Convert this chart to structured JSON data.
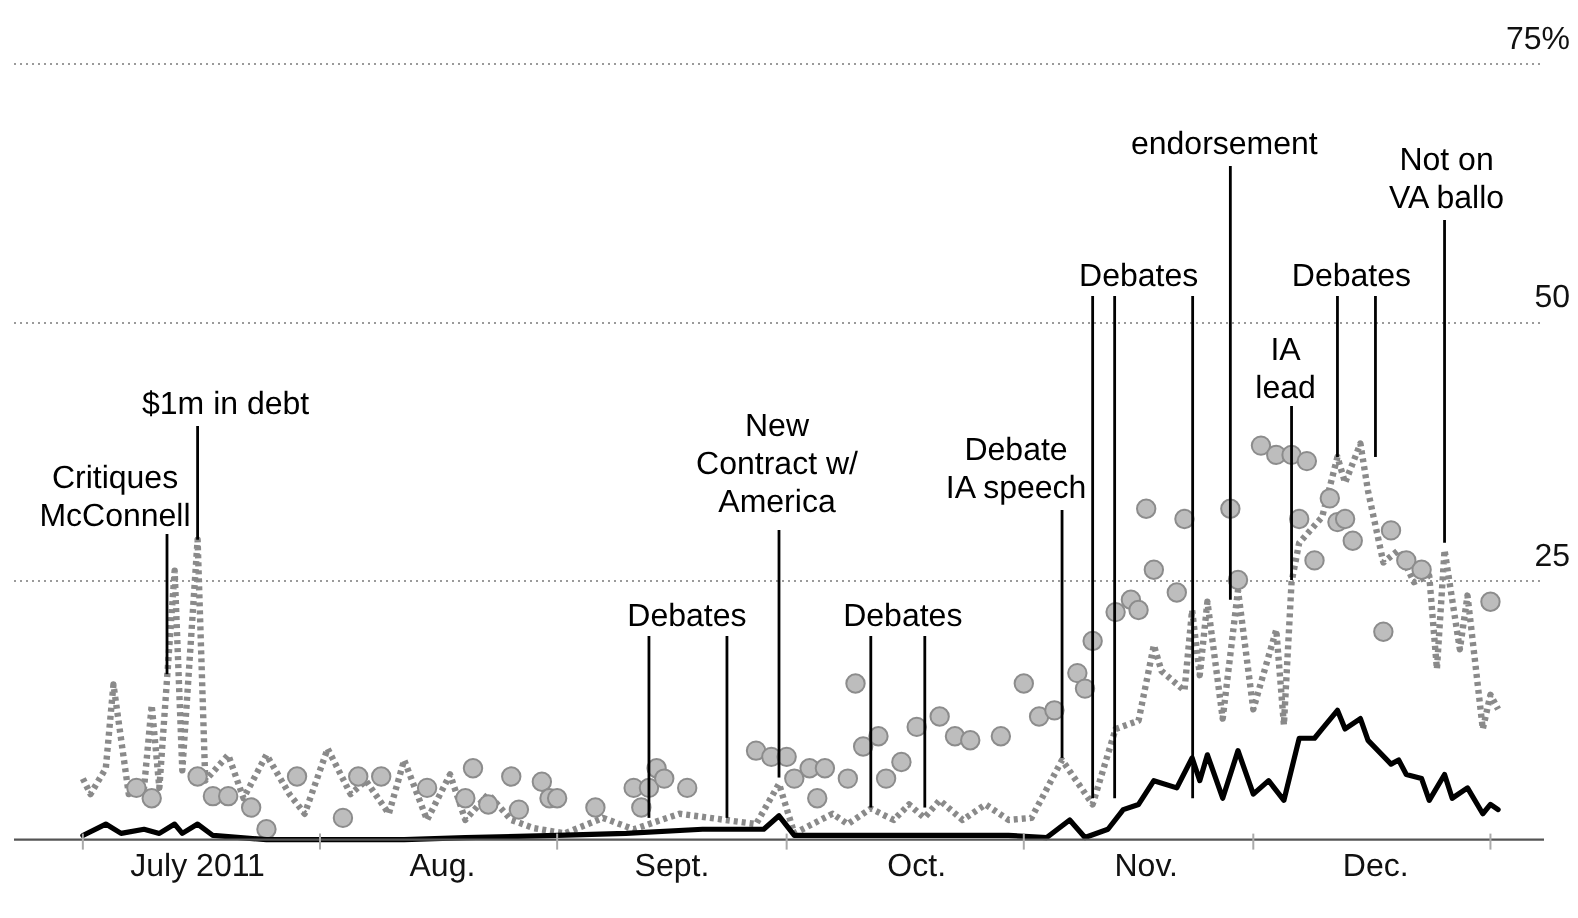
{
  "chart_data": {
    "type": "line",
    "xlim": [
      "2011-06-22",
      "2012-01-08"
    ],
    "ylim": [
      0,
      75
    ],
    "xticks": [
      {
        "value": "2011-07-01",
        "label": null
      },
      {
        "value": "2011-07-16",
        "label": "July 2011"
      },
      {
        "value": "2011-08-01",
        "label": null
      },
      {
        "value": "2011-08-17",
        "label": "Aug."
      },
      {
        "value": "2011-09-01",
        "label": null
      },
      {
        "value": "2011-09-16",
        "label": "Sept."
      },
      {
        "value": "2011-10-01",
        "label": null
      },
      {
        "value": "2011-10-18",
        "label": "Oct."
      },
      {
        "value": "2011-11-01",
        "label": null
      },
      {
        "value": "2011-11-17",
        "label": "Nov."
      },
      {
        "value": "2011-12-01",
        "label": null
      },
      {
        "value": "2011-12-17",
        "label": "Dec."
      },
      {
        "value": "2012-01-01",
        "label": null
      }
    ],
    "yticks": [
      25,
      50,
      {
        "value": 75,
        "label": "75%"
      }
    ],
    "grid": "y",
    "legend": false,
    "series": [
      {
        "color": "#8a8a8a",
        "line_style": "dotted",
        "x": [
          "2011-07-01",
          "2011-07-02",
          "2011-07-04",
          "2011-07-05",
          "2011-07-07",
          "2011-07-09",
          "2011-07-10",
          "2011-07-11",
          "2011-07-13",
          "2011-07-14",
          "2011-07-16",
          "2011-07-17",
          "2011-07-20",
          "2011-07-22",
          "2011-07-25",
          "2011-07-28",
          "2011-07-30",
          "2011-08-02",
          "2011-08-05",
          "2011-08-07",
          "2011-08-10",
          "2011-08-12",
          "2011-08-15",
          "2011-08-18",
          "2011-08-20",
          "2011-08-23",
          "2011-08-26",
          "2011-08-29",
          "2011-09-02",
          "2011-09-07",
          "2011-09-11",
          "2011-09-17",
          "2011-09-23",
          "2011-09-27",
          "2011-09-30",
          "2011-10-02",
          "2011-10-07",
          "2011-10-09",
          "2011-10-12",
          "2011-10-15",
          "2011-10-17",
          "2011-10-19",
          "2011-10-21",
          "2011-10-24",
          "2011-10-27",
          "2011-10-30",
          "2011-11-02",
          "2011-11-06",
          "2011-11-10",
          "2011-11-13",
          "2011-11-16",
          "2011-11-18",
          "2011-11-19",
          "2011-11-22",
          "2011-11-23",
          "2011-11-24",
          "2011-11-25",
          "2011-11-27",
          "2011-11-29",
          "2011-12-01",
          "2011-12-04",
          "2011-12-05",
          "2011-12-06",
          "2011-12-07",
          "2011-12-10",
          "2011-12-12",
          "2011-12-13",
          "2011-12-15",
          "2011-12-16",
          "2011-12-18",
          "2011-12-20",
          "2011-12-22",
          "2011-12-24",
          "2011-12-25",
          "2011-12-26",
          "2011-12-28",
          "2011-12-29",
          "2011-12-31",
          "2012-01-01",
          "2012-01-02"
        ],
        "values": [
          5.9,
          4.4,
          6.9,
          15,
          4.4,
          5,
          13,
          5,
          26,
          6.7,
          29,
          5.7,
          8.2,
          4,
          8.2,
          4.4,
          2.5,
          8.8,
          4.4,
          5.7,
          2.5,
          7.7,
          1.9,
          6.3,
          1.9,
          4.4,
          1.9,
          1.1,
          0.6,
          2.1,
          1,
          2.5,
          1.9,
          1.5,
          5.4,
          0.6,
          2.5,
          1.5,
          3,
          1.9,
          3.4,
          2.1,
          3.8,
          1.9,
          3.4,
          1.9,
          2.1,
          7.7,
          3.4,
          10.7,
          11.5,
          18.8,
          16.3,
          14.4,
          22.2,
          15.9,
          23,
          11.7,
          24.1,
          12.6,
          20.3,
          11.1,
          24.9,
          28.7,
          31.2,
          37,
          34.5,
          38.3,
          33.7,
          26.8,
          28,
          24.9,
          25.5,
          16.5,
          28,
          18.4,
          23.6,
          10.7,
          14,
          12.6
        ]
      },
      {
        "type": "scatter",
        "color": "#bdbdbd",
        "marker": "circle",
        "x": [
          "2011-07-08",
          "2011-07-10",
          "2011-07-16",
          "2011-07-18",
          "2011-07-20",
          "2011-07-23",
          "2011-07-25",
          "2011-07-29",
          "2011-08-04",
          "2011-08-06",
          "2011-08-09",
          "2011-08-15",
          "2011-08-20",
          "2011-08-21",
          "2011-08-23",
          "2011-08-26",
          "2011-08-27",
          "2011-08-30",
          "2011-08-31",
          "2011-09-01",
          "2011-09-06",
          "2011-09-11",
          "2011-09-12",
          "2011-09-13",
          "2011-09-14",
          "2011-09-15",
          "2011-09-18",
          "2011-09-27",
          "2011-09-29",
          "2011-10-01",
          "2011-10-02",
          "2011-10-04",
          "2011-10-05",
          "2011-10-06",
          "2011-10-09",
          "2011-10-10",
          "2011-10-11",
          "2011-10-13",
          "2011-10-14",
          "2011-10-16",
          "2011-10-18",
          "2011-10-21",
          "2011-10-23",
          "2011-10-25",
          "2011-10-29",
          "2011-11-01",
          "2011-11-03",
          "2011-11-05",
          "2011-11-08",
          "2011-11-09",
          "2011-11-10",
          "2011-11-13",
          "2011-11-15",
          "2011-11-16",
          "2011-11-17",
          "2011-11-18",
          "2011-11-21",
          "2011-11-22",
          "2011-11-28",
          "2011-11-29",
          "2011-12-02",
          "2011-12-04",
          "2011-12-06",
          "2011-12-07",
          "2011-12-08",
          "2011-12-09",
          "2011-12-11",
          "2011-12-12",
          "2011-12-13",
          "2011-12-14",
          "2011-12-18",
          "2011-12-19",
          "2011-12-21",
          "2011-12-23",
          "2012-01-01"
        ],
        "values": [
          5,
          4,
          6.1,
          4.2,
          4.2,
          3.1,
          1,
          6.1,
          2.1,
          6.1,
          6.1,
          5,
          4,
          6.9,
          3.4,
          6.1,
          2.9,
          5.6,
          4,
          4,
          3.1,
          5,
          3.1,
          5,
          6.9,
          5.9,
          5,
          8.6,
          8,
          8,
          5.9,
          6.9,
          4,
          6.9,
          5.9,
          15.1,
          9,
          10,
          5.9,
          7.5,
          10.9,
          11.9,
          10,
          9.6,
          10,
          15.1,
          11.9,
          12.5,
          16.1,
          14.6,
          19.2,
          22,
          23.2,
          22.2,
          32,
          26.1,
          23.9,
          31,
          32,
          25.1,
          38.1,
          37.2,
          37.2,
          31,
          36.6,
          27,
          33,
          30.7,
          31,
          28.9,
          20.1,
          29.9,
          27,
          26.1,
          23
        ]
      },
      {
        "color": "#000000",
        "line_style": "solid",
        "x": [
          "2011-07-01",
          "2011-07-04",
          "2011-07-06",
          "2011-07-09",
          "2011-07-11",
          "2011-07-13",
          "2011-07-14",
          "2011-07-16",
          "2011-07-18",
          "2011-07-25",
          "2011-07-31",
          "2011-08-01",
          "2011-08-03",
          "2011-08-06",
          "2011-08-12",
          "2011-08-20",
          "2011-09-01",
          "2011-09-10",
          "2011-09-20",
          "2011-09-28",
          "2011-09-30",
          "2011-10-02",
          "2011-10-10",
          "2011-10-20",
          "2011-10-30",
          "2011-11-04",
          "2011-11-07",
          "2011-11-09",
          "2011-11-12",
          "2011-11-14",
          "2011-11-16",
          "2011-11-18",
          "2011-11-21",
          "2011-11-23",
          "2011-11-24",
          "2011-11-25",
          "2011-11-27",
          "2011-11-29",
          "2011-12-01",
          "2011-12-03",
          "2011-12-05",
          "2011-12-07",
          "2011-12-09",
          "2011-12-10",
          "2011-12-12",
          "2011-12-13",
          "2011-12-15",
          "2011-12-16",
          "2011-12-19",
          "2011-12-20",
          "2011-12-21",
          "2011-12-23",
          "2011-12-24",
          "2011-12-26",
          "2011-12-27",
          "2011-12-29",
          "2011-12-31",
          "2012-01-01",
          "2012-01-02"
        ],
        "values": [
          0.4,
          1.5,
          0.6,
          1,
          0.6,
          1.5,
          0.6,
          1.5,
          0.4,
          0,
          0,
          0,
          0,
          0,
          0,
          0.2,
          0.4,
          0.6,
          1,
          1,
          2.3,
          0.4,
          0.4,
          0.4,
          0.4,
          0.2,
          1.9,
          0.2,
          1,
          2.9,
          3.4,
          5.7,
          5,
          7.9,
          5.7,
          8.2,
          4,
          8.6,
          4.4,
          5.7,
          3.8,
          9.8,
          9.8,
          10.7,
          12.5,
          10.7,
          11.7,
          9.6,
          7.3,
          7.7,
          6.3,
          5.9,
          3.8,
          6.3,
          4,
          5,
          2.5,
          3.4,
          2.9
        ]
      }
    ],
    "annotations": [
      {
        "text": "Critiques\nMcConnell",
        "x": "2011-07-12",
        "y": 16
      },
      {
        "text": "$1m in debt",
        "x": "2011-07-16",
        "y": 29
      },
      {
        "text": "New\nContract w/\nAmerica",
        "x": "2011-09-30",
        "y": 6
      },
      {
        "text": "Debates",
        "x": "2011-09-13",
        "y": 2.1
      },
      {
        "text": "Debates",
        "x": "2011-10-12",
        "y": 3.1
      },
      {
        "text": "Debate\nIA speech",
        "x": "2011-11-06",
        "y": 7.9
      },
      {
        "text": "Debates",
        "x": "2011-11-10",
        "y": 4
      },
      {
        "text": "endorsement",
        "x": "2011-11-28",
        "y": 23.2
      },
      {
        "text": "IA\nlead",
        "x": "2011-12-06",
        "y": 25.1
      },
      {
        "text": "Debates",
        "x": "2011-12-12",
        "y": 37
      },
      {
        "text": "Not on\nVA ballo",
        "x": "2011-12-26",
        "y": 28.7
      }
    ]
  }
}
